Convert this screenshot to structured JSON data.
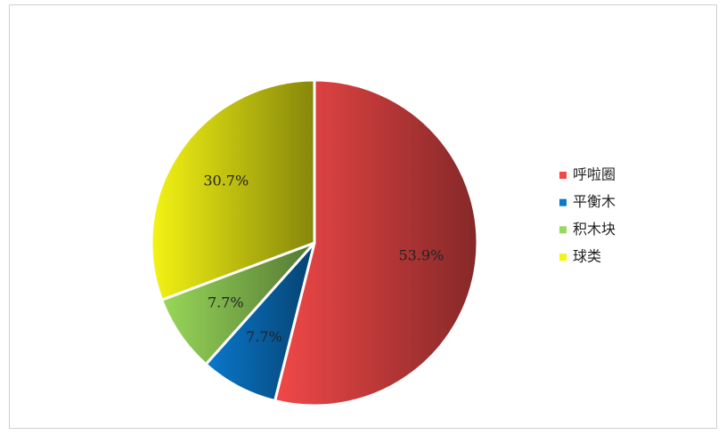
{
  "chart_data": {
    "type": "pie",
    "categories": [
      "呼啦圈",
      "平衡木",
      "积木块",
      "球类"
    ],
    "values": [
      53.9,
      7.7,
      7.7,
      30.7
    ],
    "value_labels": [
      "53.9%",
      "7.7%",
      "7.7%",
      "30.7%"
    ],
    "colors": [
      "#f24848",
      "#0a78cc",
      "#98d85a",
      "#f4f414"
    ],
    "legend": "right"
  }
}
